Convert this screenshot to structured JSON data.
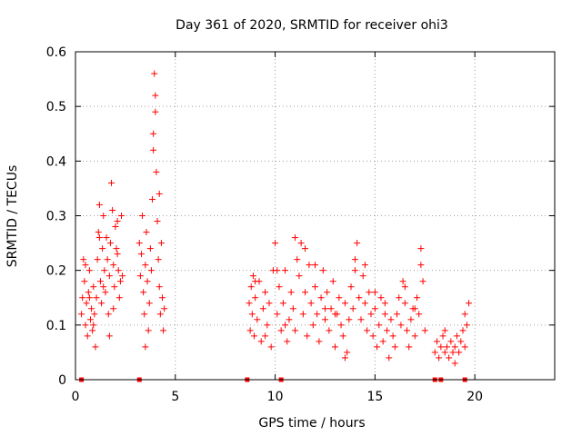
{
  "chart_data": {
    "type": "scatter",
    "title": "Day 361 of 2020, SRMTID for receiver ohi3",
    "xlabel": "GPS time / hours",
    "ylabel": "SRMTID / TECUs",
    "xlim": [
      0,
      24
    ],
    "ylim": [
      0,
      0.6
    ],
    "xticks": [
      0,
      5,
      10,
      15,
      20
    ],
    "xtick_labels": [
      "0",
      "5",
      "10",
      "15",
      "20"
    ],
    "yticks": [
      0,
      0.1,
      0.2,
      0.3,
      0.4,
      0.5,
      0.6
    ],
    "ytick_labels": [
      "0",
      "0.1",
      "0.2",
      "0.3",
      "0.4",
      "0.5",
      "0.6"
    ],
    "grid": true,
    "marker": "+",
    "color": "#ff0000",
    "series": [
      {
        "name": "SRMTID",
        "points": [
          [
            0.3,
            0.12
          ],
          [
            0.35,
            0.15
          ],
          [
            0.4,
            0.22
          ],
          [
            0.45,
            0.18
          ],
          [
            0.5,
            0.1
          ],
          [
            0.55,
            0.14
          ],
          [
            0.6,
            0.08
          ],
          [
            0.65,
            0.16
          ],
          [
            0.7,
            0.2
          ],
          [
            0.75,
            0.11
          ],
          [
            0.8,
            0.13
          ],
          [
            0.85,
            0.09
          ],
          [
            0.9,
            0.17
          ],
          [
            0.95,
            0.12
          ],
          [
            1.0,
            0.06
          ],
          [
            1.05,
            0.15
          ],
          [
            1.1,
            0.22
          ],
          [
            1.15,
            0.27
          ],
          [
            1.2,
            0.32
          ],
          [
            1.25,
            0.18
          ],
          [
            1.3,
            0.14
          ],
          [
            1.35,
            0.24
          ],
          [
            1.4,
            0.3
          ],
          [
            1.45,
            0.2
          ],
          [
            1.5,
            0.16
          ],
          [
            1.55,
            0.26
          ],
          [
            1.6,
            0.22
          ],
          [
            1.65,
            0.12
          ],
          [
            1.7,
            0.19
          ],
          [
            1.75,
            0.25
          ],
          [
            1.8,
            0.36
          ],
          [
            1.85,
            0.31
          ],
          [
            1.9,
            0.21
          ],
          [
            1.95,
            0.17
          ],
          [
            2.0,
            0.28
          ],
          [
            2.05,
            0.24
          ],
          [
            2.1,
            0.29
          ],
          [
            2.15,
            0.2
          ],
          [
            2.2,
            0.15
          ],
          [
            2.25,
            0.18
          ],
          [
            0.5,
            0.21
          ],
          [
            0.7,
            0.15
          ],
          [
            0.9,
            0.1
          ],
          [
            1.2,
            0.26
          ],
          [
            1.4,
            0.17
          ],
          [
            1.7,
            0.08
          ],
          [
            1.9,
            0.13
          ],
          [
            2.1,
            0.23
          ],
          [
            2.3,
            0.3
          ],
          [
            2.35,
            0.19
          ],
          [
            3.2,
            0.25
          ],
          [
            3.25,
            0.19
          ],
          [
            3.3,
            0.23
          ],
          [
            3.35,
            0.3
          ],
          [
            3.4,
            0.16
          ],
          [
            3.45,
            0.12
          ],
          [
            3.5,
            0.21
          ],
          [
            3.55,
            0.27
          ],
          [
            3.6,
            0.18
          ],
          [
            3.65,
            0.09
          ],
          [
            3.7,
            0.14
          ],
          [
            3.75,
            0.24
          ],
          [
            3.8,
            0.2
          ],
          [
            3.85,
            0.33
          ],
          [
            3.9,
            0.45
          ],
          [
            3.95,
            0.56
          ],
          [
            4.0,
            0.49
          ],
          [
            4.05,
            0.38
          ],
          [
            4.1,
            0.29
          ],
          [
            4.15,
            0.22
          ],
          [
            4.2,
            0.17
          ],
          [
            4.25,
            0.12
          ],
          [
            4.3,
            0.25
          ],
          [
            4.35,
            0.15
          ],
          [
            4.4,
            0.09
          ],
          [
            4.45,
            0.13
          ],
          [
            3.5,
            0.06
          ],
          [
            3.9,
            0.42
          ],
          [
            4.0,
            0.52
          ],
          [
            4.2,
            0.34
          ],
          [
            8.7,
            0.14
          ],
          [
            8.75,
            0.09
          ],
          [
            8.8,
            0.17
          ],
          [
            8.85,
            0.12
          ],
          [
            8.9,
            0.19
          ],
          [
            8.95,
            0.08
          ],
          [
            9.0,
            0.15
          ],
          [
            9.1,
            0.11
          ],
          [
            9.2,
            0.18
          ],
          [
            9.3,
            0.07
          ],
          [
            9.4,
            0.13
          ],
          [
            9.5,
            0.16
          ],
          [
            9.6,
            0.1
          ],
          [
            9.7,
            0.14
          ],
          [
            9.8,
            0.06
          ],
          [
            9.9,
            0.2
          ],
          [
            10.0,
            0.25
          ],
          [
            10.1,
            0.12
          ],
          [
            10.2,
            0.17
          ],
          [
            10.3,
            0.09
          ],
          [
            10.4,
            0.14
          ],
          [
            10.5,
            0.2
          ],
          [
            10.6,
            0.07
          ],
          [
            10.7,
            0.11
          ],
          [
            10.8,
            0.16
          ],
          [
            10.9,
            0.13
          ],
          [
            11.0,
            0.09
          ],
          [
            11.1,
            0.22
          ],
          [
            11.2,
            0.19
          ],
          [
            11.3,
            0.25
          ],
          [
            11.4,
            0.12
          ],
          [
            11.5,
            0.16
          ],
          [
            11.6,
            0.08
          ],
          [
            11.7,
            0.21
          ],
          [
            11.8,
            0.14
          ],
          [
            11.9,
            0.1
          ],
          [
            12.0,
            0.17
          ],
          [
            12.1,
            0.12
          ],
          [
            12.2,
            0.07
          ],
          [
            12.3,
            0.15
          ],
          [
            12.4,
            0.2
          ],
          [
            12.5,
            0.11
          ],
          [
            12.6,
            0.16
          ],
          [
            12.7,
            0.09
          ],
          [
            12.8,
            0.13
          ],
          [
            12.9,
            0.18
          ],
          [
            13.0,
            0.06
          ],
          [
            13.1,
            0.12
          ],
          [
            13.2,
            0.15
          ],
          [
            13.3,
            0.1
          ],
          [
            13.4,
            0.08
          ],
          [
            13.5,
            0.14
          ],
          [
            13.6,
            0.05
          ],
          [
            13.7,
            0.11
          ],
          [
            13.8,
            0.17
          ],
          [
            13.9,
            0.13
          ],
          [
            14.0,
            0.22
          ],
          [
            14.1,
            0.25
          ],
          [
            14.2,
            0.15
          ],
          [
            14.3,
            0.11
          ],
          [
            14.4,
            0.19
          ],
          [
            14.5,
            0.14
          ],
          [
            14.6,
            0.09
          ],
          [
            14.7,
            0.16
          ],
          [
            14.8,
            0.12
          ],
          [
            14.9,
            0.08
          ],
          [
            15.0,
            0.13
          ],
          [
            15.1,
            0.06
          ],
          [
            15.2,
            0.1
          ],
          [
            15.3,
            0.15
          ],
          [
            15.4,
            0.07
          ],
          [
            15.5,
            0.12
          ],
          [
            15.6,
            0.09
          ],
          [
            15.7,
            0.04
          ],
          [
            15.8,
            0.11
          ],
          [
            15.9,
            0.08
          ],
          [
            16.0,
            0.06
          ],
          [
            16.1,
            0.12
          ],
          [
            16.2,
            0.15
          ],
          [
            16.3,
            0.1
          ],
          [
            16.4,
            0.18
          ],
          [
            16.5,
            0.14
          ],
          [
            16.6,
            0.09
          ],
          [
            16.7,
            0.06
          ],
          [
            16.8,
            0.11
          ],
          [
            16.9,
            0.13
          ],
          [
            17.0,
            0.08
          ],
          [
            17.1,
            0.15
          ],
          [
            17.2,
            0.12
          ],
          [
            17.3,
            0.24
          ],
          [
            17.4,
            0.18
          ],
          [
            17.5,
            0.09
          ],
          [
            18.0,
            0.05
          ],
          [
            18.1,
            0.07
          ],
          [
            18.2,
            0.04
          ],
          [
            18.3,
            0.06
          ],
          [
            18.4,
            0.08
          ],
          [
            18.5,
            0.05
          ],
          [
            18.6,
            0.06
          ],
          [
            18.7,
            0.04
          ],
          [
            18.8,
            0.07
          ],
          [
            18.9,
            0.05
          ],
          [
            19.0,
            0.06
          ],
          [
            19.1,
            0.08
          ],
          [
            19.2,
            0.05
          ],
          [
            19.3,
            0.07
          ],
          [
            19.4,
            0.09
          ],
          [
            19.5,
            0.06
          ],
          [
            19.6,
            0.1
          ],
          [
            19.7,
            0.14
          ],
          [
            9.0,
            0.18
          ],
          [
            9.5,
            0.08
          ],
          [
            10.1,
            0.2
          ],
          [
            11.0,
            0.26
          ],
          [
            11.5,
            0.24
          ],
          [
            12.0,
            0.21
          ],
          [
            13.0,
            0.12
          ],
          [
            13.5,
            0.04
          ],
          [
            14.0,
            0.2
          ],
          [
            14.5,
            0.21
          ],
          [
            15.0,
            0.16
          ],
          [
            15.5,
            0.14
          ],
          [
            16.5,
            0.17
          ],
          [
            17.0,
            0.13
          ],
          [
            17.3,
            0.21
          ],
          [
            18.5,
            0.09
          ],
          [
            19.0,
            0.03
          ],
          [
            19.5,
            0.12
          ],
          [
            10.5,
            0.1
          ],
          [
            12.5,
            0.13
          ]
        ]
      }
    ],
    "outage_markers": [
      0.3,
      3.2,
      8.6,
      10.3,
      18.0,
      18.3,
      19.5
    ]
  }
}
